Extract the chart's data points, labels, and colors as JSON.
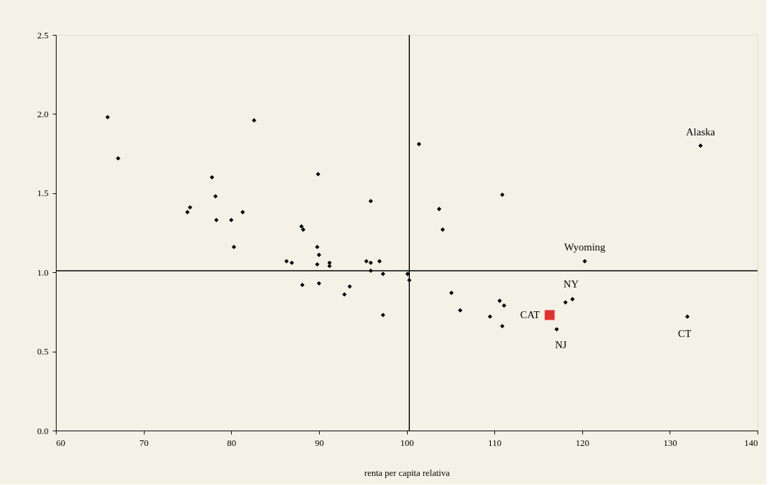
{
  "chart_data": {
    "type": "scatter",
    "xlabel": "renta per capita relativa",
    "xlim": [
      60,
      140
    ],
    "xticks": [
      60,
      70,
      80,
      90,
      100,
      110,
      120,
      130,
      140
    ],
    "ylim": [
      0,
      2.5
    ],
    "yticks": [
      {
        "value": 0,
        "label": "0.0"
      },
      {
        "value": 0.5,
        "label": "0.5"
      },
      {
        "value": 1,
        "label": "1.0"
      },
      {
        "value": 1.5,
        "label": "1.5"
      },
      {
        "value": 2,
        "label": "2.0"
      },
      {
        "value": 2.5,
        "label": "2.5"
      }
    ],
    "grid": false,
    "series": [
      {
        "color": "#000000",
        "marker": "diamond",
        "x": [
          65.9,
          67.1,
          75.0,
          75.3,
          77.8,
          78.2,
          78.3,
          80.0,
          80.3,
          81.3,
          82.6,
          86.3,
          86.9,
          88.0,
          88.2,
          88.1,
          89.8,
          89.8,
          89.9,
          90.0,
          90.0,
          91.2,
          91.2,
          92.9,
          93.5,
          95.4,
          95.9,
          95.9,
          95.9,
          96.9,
          97.3,
          97.3,
          100.1,
          100.3,
          101.4,
          103.7,
          104.1,
          105.1,
          106.1,
          109.5,
          110.6,
          110.9,
          110.9,
          111.1,
          117.1,
          118.1,
          118.9,
          120.3,
          132.0,
          133.5
        ],
        "values": [
          1.98,
          1.72,
          1.38,
          1.41,
          1.6,
          1.48,
          1.33,
          1.33,
          1.16,
          1.38,
          1.96,
          1.07,
          1.06,
          1.29,
          1.27,
          0.92,
          1.16,
          1.05,
          1.62,
          1.11,
          0.93,
          1.06,
          1.04,
          0.86,
          0.91,
          1.07,
          1.45,
          1.06,
          1.01,
          1.07,
          0.99,
          0.73,
          0.99,
          0.95,
          1.81,
          1.4,
          1.27,
          0.87,
          0.76,
          0.72,
          0.82,
          1.49,
          0.66,
          0.79,
          0.64,
          0.81,
          0.83,
          1.07,
          0.72,
          1.8
        ]
      },
      {
        "color": "#e03030",
        "marker": "square",
        "x": [
          116.3
        ],
        "values": [
          0.73
        ]
      }
    ],
    "ref_lines": [
      {
        "axis": "x",
        "value": 100.3
      },
      {
        "axis": "y",
        "value": 1.01
      }
    ],
    "annotations": [
      {
        "text": "Alaska",
        "x": 133.5,
        "y": 1.8
      },
      {
        "text": "Wyoming",
        "x": 120.3,
        "y": 1.07
      },
      {
        "text": "NY",
        "x": 118.9,
        "y": 0.83
      },
      {
        "text": "CAT",
        "x": 116.3,
        "y": 0.73
      },
      {
        "text": "NJ",
        "x": 117.1,
        "y": 0.64
      },
      {
        "text": "CT",
        "x": 132.0,
        "y": 0.72
      }
    ]
  }
}
